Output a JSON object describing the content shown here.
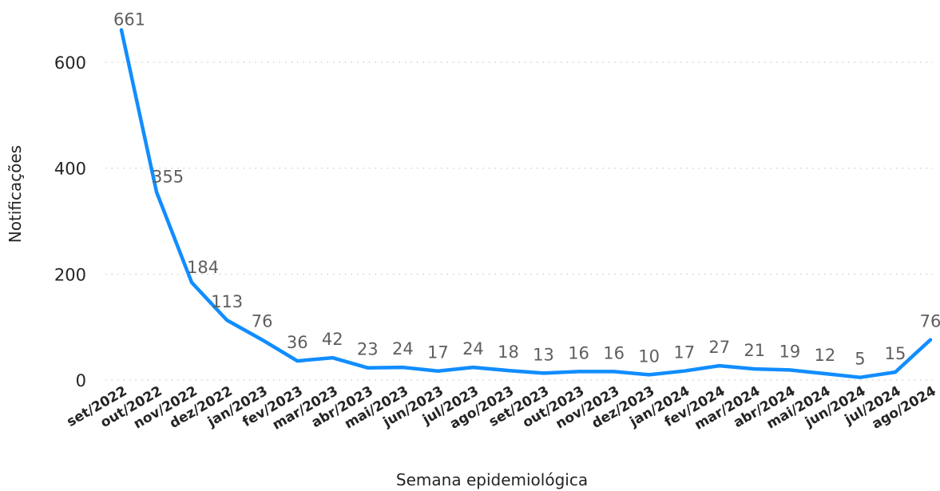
{
  "chart_data": {
    "type": "line",
    "xlabel": "Semana epidemiológica",
    "ylabel": "Notificações",
    "ylim": [
      0,
      661
    ],
    "yticks": [
      0,
      200,
      400,
      600
    ],
    "grid": true,
    "colors": {
      "line": "#118dff",
      "text": "#252423",
      "label": "#605e5c",
      "grid": "#c8c6c4"
    },
    "categories": [
      "set/2022",
      "out/2022",
      "nov/2022",
      "dez/2022",
      "jan/2023",
      "fev/2023",
      "mar/2023",
      "abr/2023",
      "mai/2023",
      "jun/2023",
      "jul/2023",
      "ago/2023",
      "set/2023",
      "out/2023",
      "nov/2023",
      "dez/2023",
      "jan/2024",
      "fev/2024",
      "mar/2024",
      "abr/2024",
      "mai/2024",
      "jun/2024",
      "jul/2024",
      "ago/2024"
    ],
    "series": [
      {
        "values": [
          661,
          355,
          184,
          113,
          76,
          36,
          42,
          23,
          24,
          17,
          24,
          18,
          13,
          16,
          16,
          10,
          17,
          27,
          21,
          19,
          12,
          5,
          15,
          76
        ]
      }
    ]
  }
}
